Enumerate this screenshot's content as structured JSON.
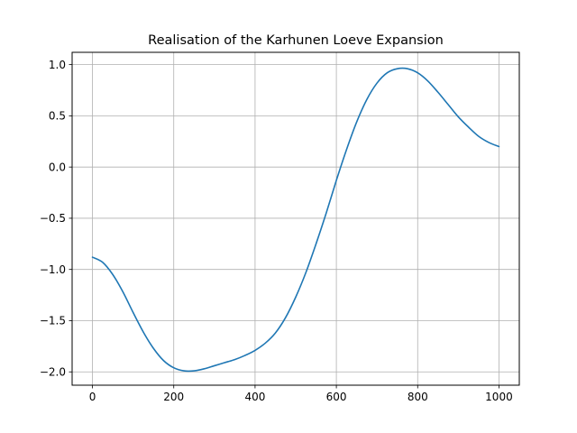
{
  "chart_data": {
    "type": "line",
    "title": "Realisation of the Karhunen Loeve Expansion",
    "xlabel": "",
    "ylabel": "",
    "xlim": [
      -50,
      1050
    ],
    "ylim": [
      -2.13,
      1.12
    ],
    "grid": true,
    "x_ticks": [
      0,
      200,
      400,
      600,
      800,
      1000
    ],
    "x_tick_labels": [
      "0",
      "200",
      "400",
      "600",
      "800",
      "1000"
    ],
    "y_ticks": [
      -2.0,
      -1.5,
      -1.0,
      -0.5,
      0.0,
      0.5,
      1.0
    ],
    "y_tick_labels": [
      "−2.0",
      "−1.5",
      "−1.0",
      "−0.5",
      "0.0",
      "0.5",
      "1.0"
    ],
    "series": [
      {
        "color": "#1f77b4",
        "x": [
          0,
          25,
          50,
          75,
          100,
          125,
          150,
          175,
          200,
          225,
          250,
          275,
          300,
          325,
          350,
          375,
          400,
          425,
          450,
          475,
          500,
          525,
          550,
          575,
          600,
          625,
          650,
          675,
          700,
          725,
          750,
          775,
          800,
          825,
          850,
          875,
          900,
          925,
          950,
          975,
          1000
        ],
        "y": [
          -0.88,
          -0.93,
          -1.05,
          -1.22,
          -1.42,
          -1.61,
          -1.77,
          -1.89,
          -1.96,
          -1.99,
          -1.99,
          -1.97,
          -1.94,
          -1.91,
          -1.88,
          -1.84,
          -1.79,
          -1.72,
          -1.62,
          -1.47,
          -1.27,
          -1.03,
          -0.75,
          -0.45,
          -0.13,
          0.17,
          0.44,
          0.66,
          0.82,
          0.92,
          0.96,
          0.96,
          0.92,
          0.84,
          0.73,
          0.61,
          0.49,
          0.39,
          0.3,
          0.24,
          0.2
        ]
      }
    ]
  }
}
